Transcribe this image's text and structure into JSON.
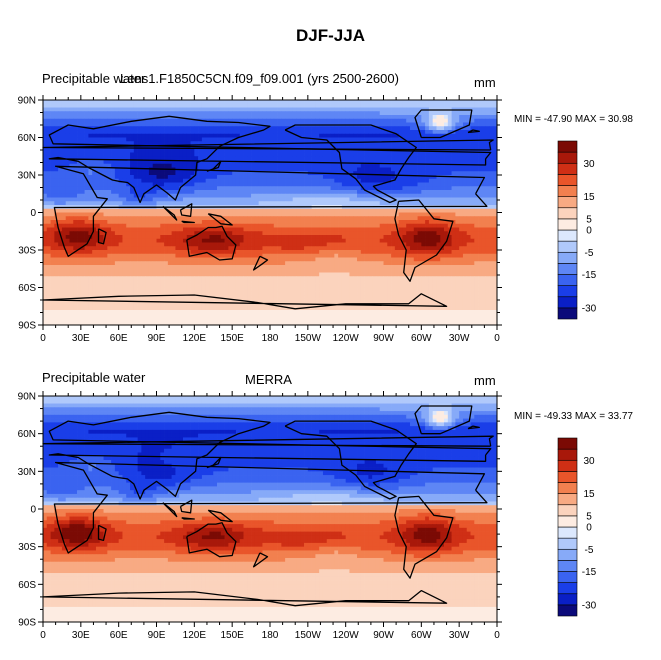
{
  "figure": {
    "title": "DJF-JJA"
  },
  "colors": {
    "levels": [
      "#0b0a7a",
      "#0a1fc6",
      "#1a3ee8",
      "#3a63f0",
      "#5e86f5",
      "#87aaf8",
      "#b0c9fb",
      "#dce8fd",
      "#fdece2",
      "#fbd3bd",
      "#f8aa83",
      "#f2804f",
      "#e9552a",
      "#cf2f15",
      "#a8180a",
      "#7b0a04"
    ],
    "land": "#000000",
    "frame": "#000000"
  },
  "chart_data": [
    {
      "type": "filled-contour-map",
      "title_left": "Precipitable water",
      "title_center": "Lens1.F1850C5CN.f09_f09.001 (yrs 2500-2600)",
      "title_right": "mm",
      "stats": "MIN = -47.90 MAX =  30.98",
      "min": -47.9,
      "max": 30.98,
      "x_ticks": [
        "0",
        "30E",
        "60E",
        "90E",
        "120E",
        "150E",
        "180",
        "150W",
        "120W",
        "90W",
        "60W",
        "30W",
        "0"
      ],
      "y_ticks": [
        "90N",
        "60N",
        "30N",
        "0",
        "30S",
        "60S",
        "90S"
      ],
      "colorbar_labels": [
        "30",
        "15",
        "5",
        "0",
        "-5",
        "-15",
        "-30"
      ],
      "colorbar_levels": [
        -35,
        -30,
        -25,
        -20,
        -15,
        -10,
        -5,
        -2,
        2,
        5,
        10,
        15,
        20,
        25,
        30
      ],
      "grid": false
    },
    {
      "type": "filled-contour-map",
      "title_left": "Precipitable water",
      "title_center": "MERRA",
      "title_right": "mm",
      "stats": "MIN = -49.33 MAX =  33.77",
      "min": -49.33,
      "max": 33.77,
      "x_ticks": [
        "0",
        "30E",
        "60E",
        "90E",
        "120E",
        "150E",
        "180",
        "150W",
        "120W",
        "90W",
        "60W",
        "30W",
        "0"
      ],
      "y_ticks": [
        "90N",
        "60N",
        "30N",
        "0",
        "30S",
        "60S",
        "90S"
      ],
      "colorbar_labels": [
        "30",
        "15",
        "5",
        "0",
        "-5",
        "-15",
        "-30"
      ],
      "colorbar_levels": [
        -35,
        -30,
        -25,
        -20,
        -15,
        -10,
        -5,
        -2,
        2,
        5,
        10,
        15,
        20,
        25,
        30
      ],
      "grid": false
    }
  ]
}
